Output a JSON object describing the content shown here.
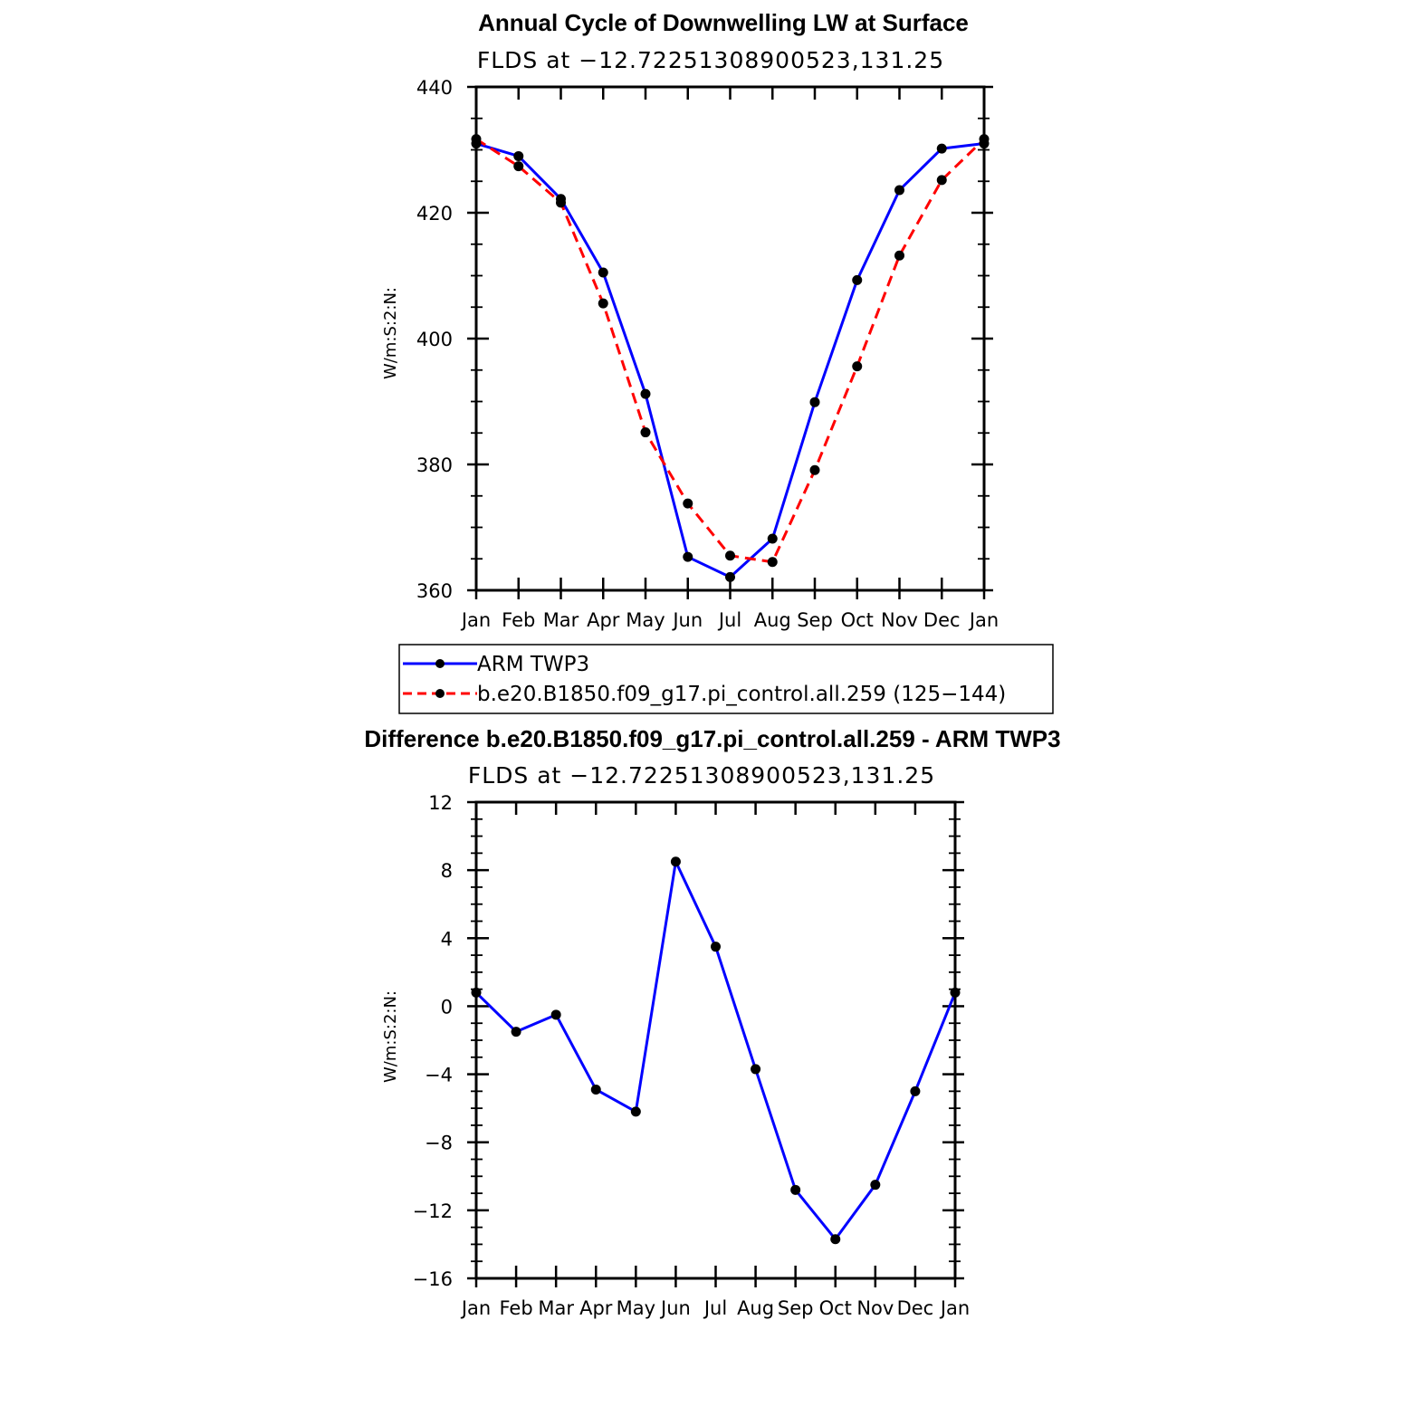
{
  "chart_data": [
    {
      "type": "line",
      "title": "Annual Cycle of Downwelling LW at Surface",
      "subtitle": "FLDS at −12.72251308900523,131.25",
      "ylabel": "W/m:S:2:N:",
      "xlabel": "",
      "categories": [
        "Jan",
        "Feb",
        "Mar",
        "Apr",
        "May",
        "Jun",
        "Jul",
        "Aug",
        "Sep",
        "Oct",
        "Nov",
        "Dec",
        "Jan"
      ],
      "ylim": [
        360,
        440
      ],
      "yticks": [
        360,
        380,
        400,
        420,
        440
      ],
      "series": [
        {
          "name": "ARM TWP3",
          "color": "#0000ff",
          "dash": "solid",
          "values": [
            431.0,
            429.0,
            422.2,
            410.5,
            391.2,
            365.3,
            362.1,
            368.2,
            389.9,
            409.3,
            423.6,
            430.2,
            431.0
          ]
        },
        {
          "name": "b.e20.B1850.f09_g17.pi_control.all.259 (125−144)",
          "color": "#ff0000",
          "dash": "dashed",
          "values": [
            431.7,
            427.4,
            421.6,
            405.6,
            385.1,
            373.8,
            365.5,
            364.5,
            379.1,
            395.6,
            413.2,
            425.2,
            431.7
          ]
        }
      ]
    },
    {
      "type": "line",
      "title": "Difference b.e20.B1850.f09_g17.pi_control.all.259 - ARM TWP3",
      "subtitle": "FLDS at −12.72251308900523,131.25",
      "ylabel": "W/m:S:2:N:",
      "xlabel": "",
      "categories": [
        "Jan",
        "Feb",
        "Mar",
        "Apr",
        "May",
        "Jun",
        "Jul",
        "Aug",
        "Sep",
        "Oct",
        "Nov",
        "Dec",
        "Jan"
      ],
      "ylim": [
        -16,
        12
      ],
      "yticks": [
        -16,
        -12,
        -8,
        -4,
        0,
        4,
        8,
        12
      ],
      "ytick_labels": [
        "−16",
        "−12",
        "−8",
        "−4",
        "0",
        "4",
        "8",
        "12"
      ],
      "series": [
        {
          "name": "",
          "color": "#0000ff",
          "dash": "solid",
          "values": [
            0.8,
            -1.5,
            -0.5,
            -4.9,
            -6.2,
            8.5,
            3.5,
            -3.7,
            -10.8,
            -13.7,
            -10.5,
            -5.0,
            0.8
          ]
        }
      ]
    }
  ],
  "legend": {
    "placement": "bottom-center",
    "entries": [
      "ARM TWP3",
      "b.e20.B1850.f09_g17.pi_control.all.259 (125−144)"
    ]
  }
}
